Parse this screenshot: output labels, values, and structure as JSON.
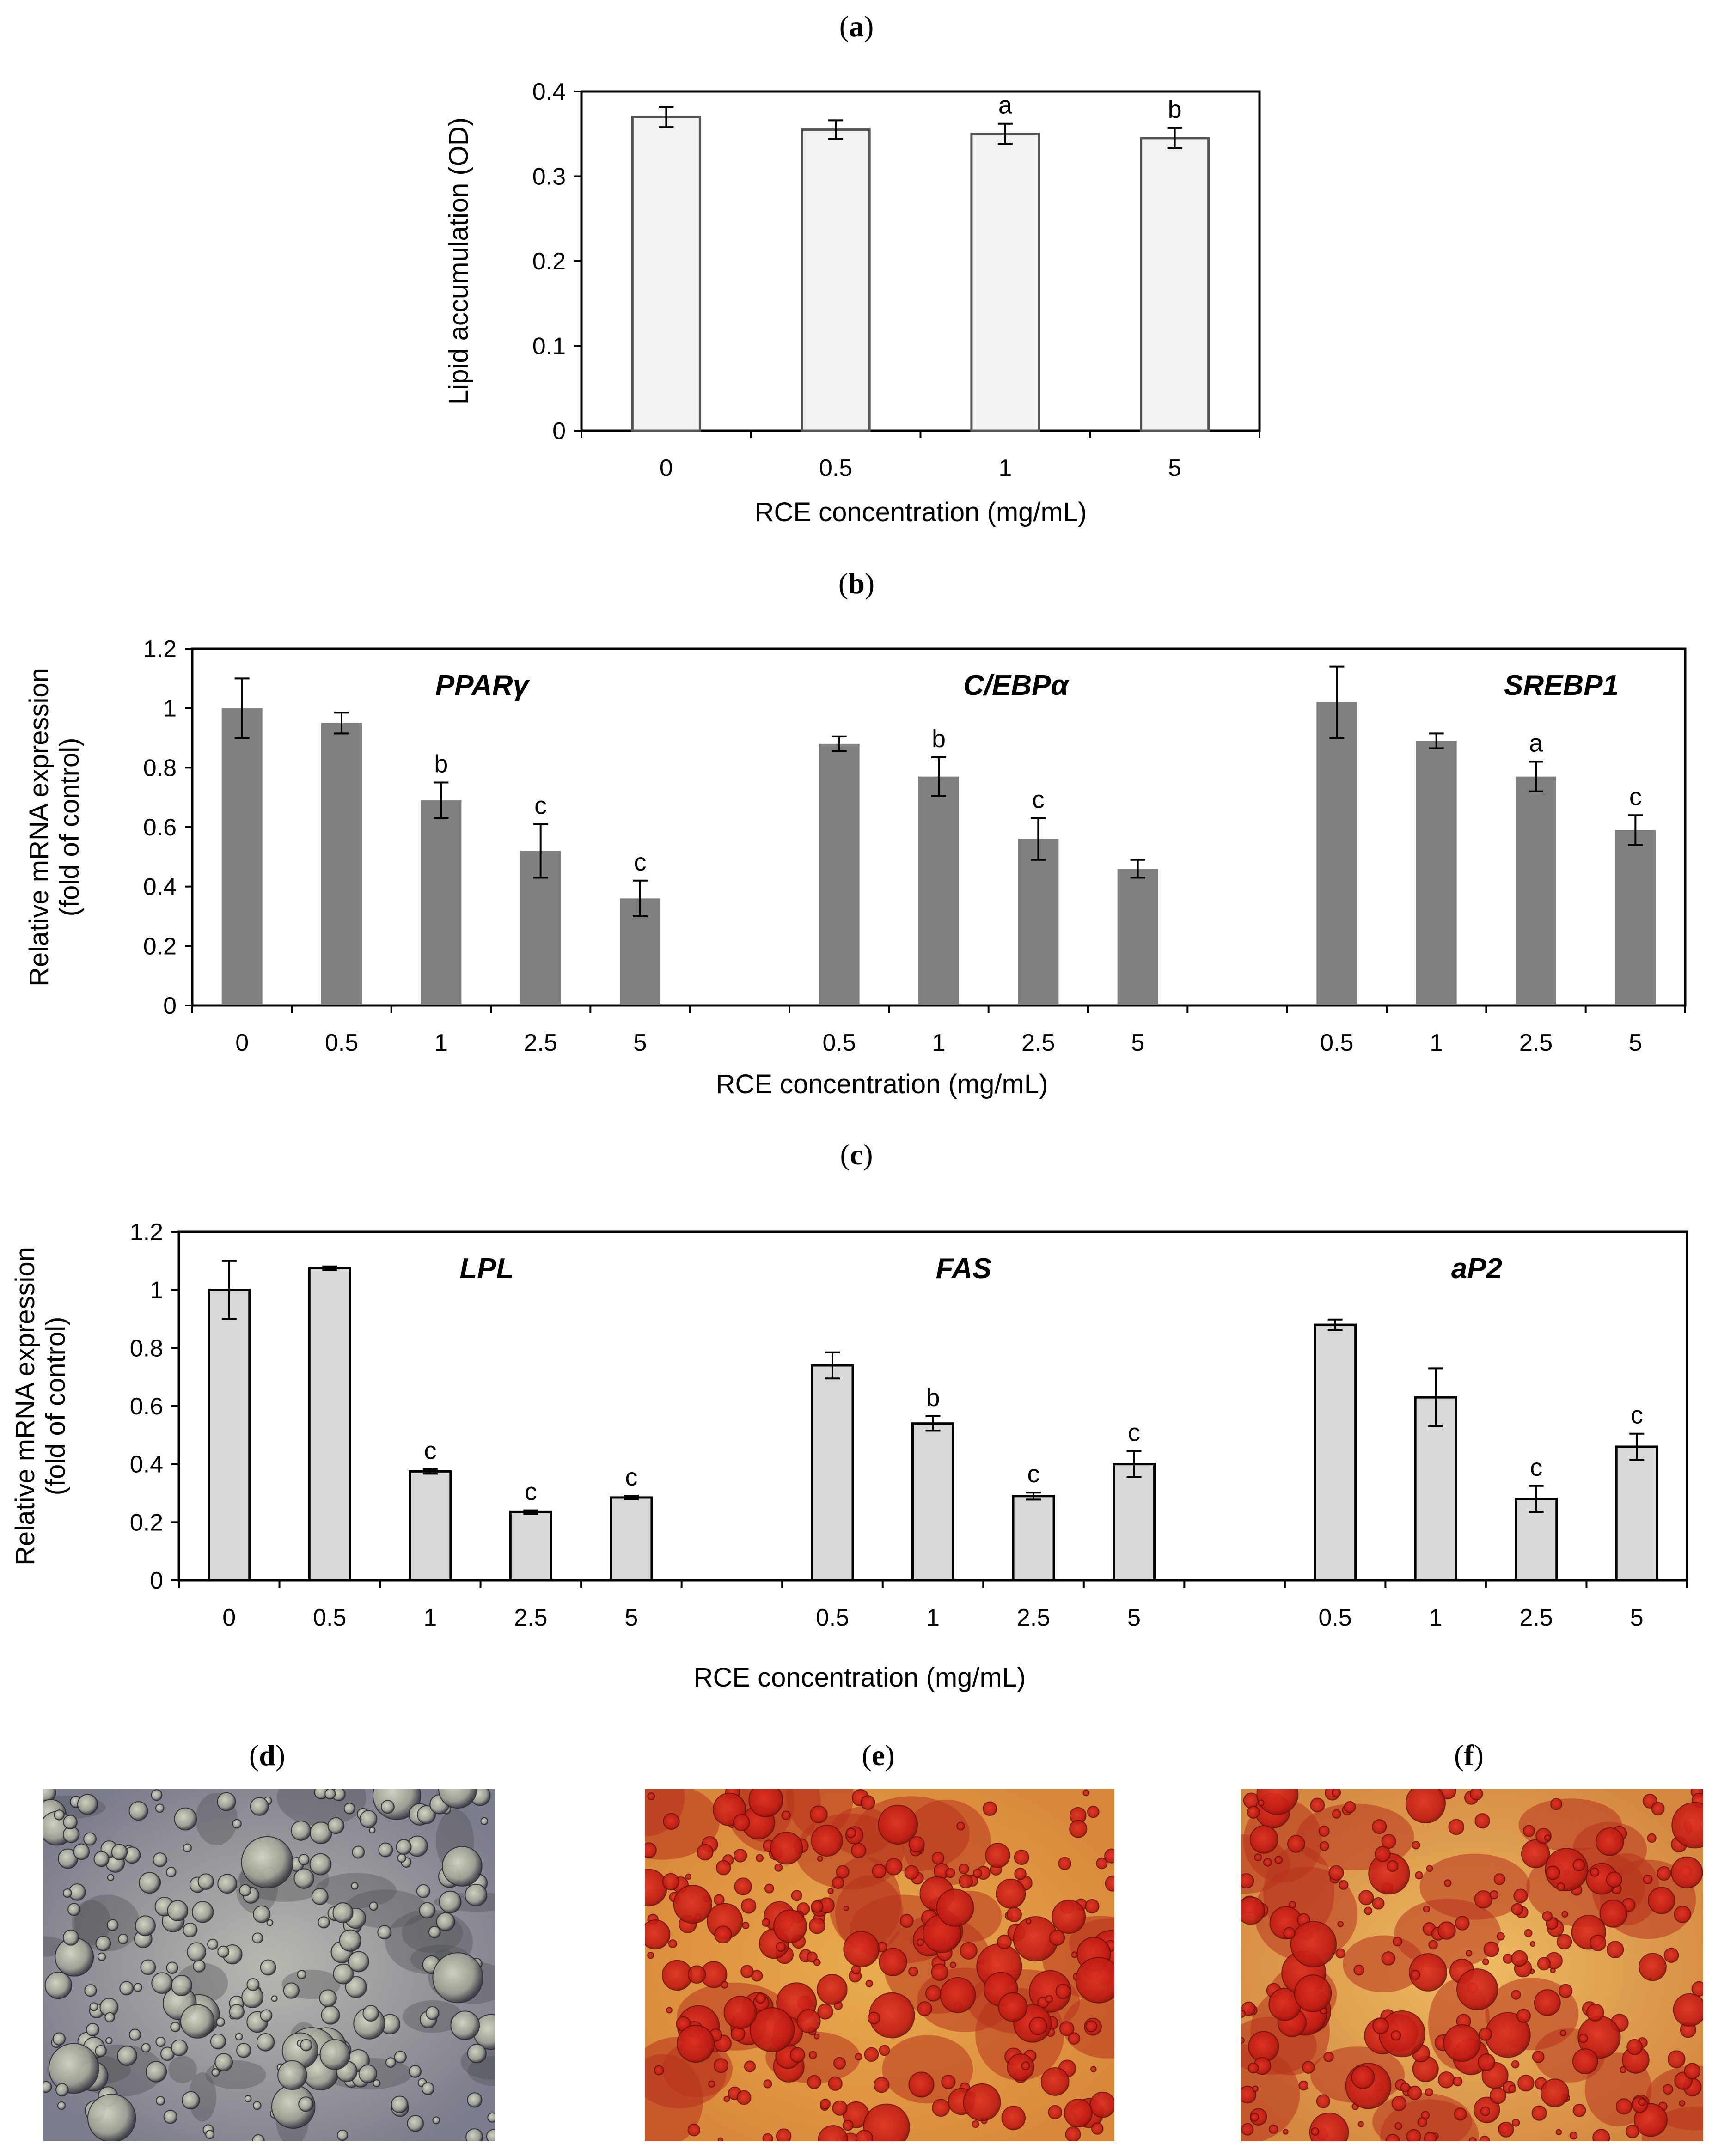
{
  "panel_labels": [
    "a",
    "b",
    "c",
    "d",
    "e",
    "f"
  ],
  "chart_data": [
    {
      "id": "a",
      "type": "bar",
      "categories": [
        "0",
        "0.5",
        "1",
        "5"
      ],
      "values": [
        0.37,
        0.355,
        0.35,
        0.345
      ],
      "errors": [
        0.012,
        0.011,
        0.012,
        0.012
      ],
      "significance": [
        "",
        "",
        "a",
        "b"
      ],
      "ylabel": "Lipid accumulation (OD)",
      "xlabel": "RCE concentration (mg/mL)",
      "ylim": [
        0,
        0.4
      ],
      "yticks": [
        "0",
        "0.1",
        "0.2",
        "0.3",
        "0.4"
      ],
      "bar_color": "#f2f2f2"
    },
    {
      "id": "b",
      "type": "bar",
      "bar_color": "#808080",
      "ylabel_lines": [
        "Relative mRNA expression",
        "(fold of control)"
      ],
      "xlabel": "RCE concentration (mg/mL)",
      "ylim": [
        0,
        1.2
      ],
      "yticks": [
        "0",
        "0.2",
        "0.4",
        "0.6",
        "0.8",
        "1",
        "1.2"
      ],
      "groups": [
        {
          "gene": "PPARγ",
          "categories": [
            "0",
            "0.5",
            "1",
            "2.5",
            "5"
          ],
          "values": [
            1.0,
            0.95,
            0.69,
            0.52,
            0.36
          ],
          "errors": [
            0.1,
            0.035,
            0.06,
            0.09,
            0.06
          ],
          "significance": [
            "",
            "",
            "b",
            "c",
            "c"
          ]
        },
        {
          "gene": "C/EBPα",
          "categories": [
            "0.5",
            "1",
            "2.5",
            "5"
          ],
          "values": [
            0.88,
            0.77,
            0.56,
            0.46
          ],
          "errors": [
            0.025,
            0.065,
            0.07,
            0.03
          ],
          "significance": [
            "",
            "b",
            "c",
            ""
          ]
        },
        {
          "gene": "SREBP1",
          "categories": [
            "0.5",
            "1",
            "2.5",
            "5"
          ],
          "values": [
            1.02,
            0.89,
            0.77,
            0.59
          ],
          "errors": [
            0.12,
            0.025,
            0.05,
            0.05
          ],
          "significance": [
            "",
            "",
            "a",
            "c"
          ]
        }
      ]
    },
    {
      "id": "c",
      "type": "bar",
      "bar_color": "#d9d9d9",
      "ylabel_lines": [
        "Relative mRNA expression",
        "(fold of control)"
      ],
      "xlabel": "RCE concentration (mg/mL)",
      "ylim": [
        0,
        1.2
      ],
      "yticks": [
        "0",
        "0.2",
        "0.4",
        "0.6",
        "0.8",
        "1",
        "1.2"
      ],
      "groups": [
        {
          "gene": "LPL",
          "categories": [
            "0",
            "0.5",
            "1",
            "2.5",
            "5"
          ],
          "values": [
            1.0,
            1.075,
            0.375,
            0.235,
            0.285
          ],
          "errors": [
            0.1,
            0.006,
            0.008,
            0.006,
            0.006
          ],
          "significance": [
            "",
            "",
            "c",
            "c",
            "c"
          ]
        },
        {
          "gene": "FAS",
          "categories": [
            "0.5",
            "1",
            "2.5",
            "5"
          ],
          "values": [
            0.74,
            0.54,
            0.29,
            0.4
          ],
          "errors": [
            0.045,
            0.025,
            0.012,
            0.045
          ],
          "significance": [
            "",
            "b",
            "c",
            "c"
          ]
        },
        {
          "gene": "aP2",
          "categories": [
            "0.5",
            "1",
            "2.5",
            "5"
          ],
          "values": [
            0.88,
            0.63,
            0.28,
            0.46
          ],
          "errors": [
            0.018,
            0.1,
            0.045,
            0.045
          ],
          "significance": [
            "",
            "",
            "c",
            "c"
          ]
        }
      ]
    }
  ],
  "micrographs": [
    {
      "id": "d",
      "stain": "unstained",
      "colors": [
        "#8e8e9a",
        "#6f7180",
        "#c9c8b8"
      ]
    },
    {
      "id": "e",
      "stain": "oil-red-o",
      "colors": [
        "#e7a84a",
        "#d0251b",
        "#a61510"
      ]
    },
    {
      "id": "f",
      "stain": "oil-red-o",
      "colors": [
        "#eab55c",
        "#d2321e",
        "#8a1a0c"
      ]
    }
  ]
}
